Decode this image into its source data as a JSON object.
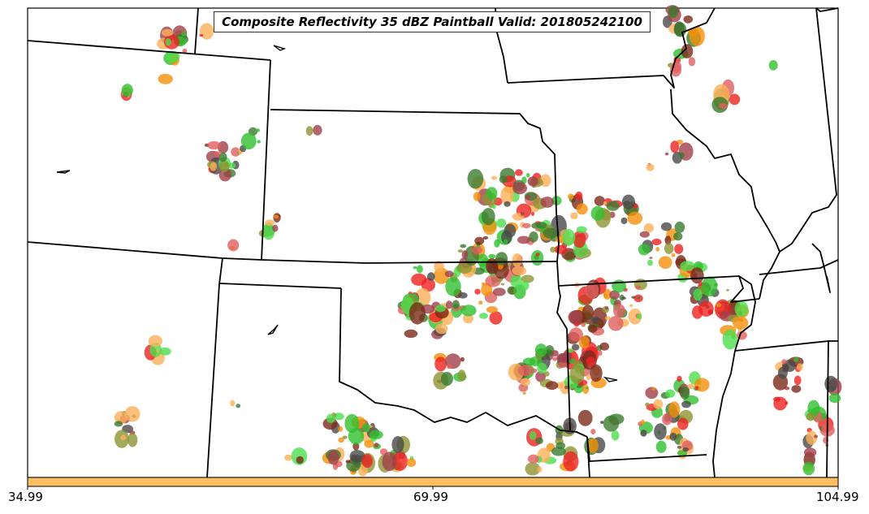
{
  "title": "Composite Reflectivity 35 dBZ Paintball Valid: 201805242100",
  "colorbar": {
    "fill_color": "#fdbf62",
    "ticks": [
      "34.99",
      "69.99",
      "104.99"
    ]
  },
  "palette": {
    "red": "#ee2222",
    "salmon": "#e06060",
    "orange": "#f5900a",
    "light_orange": "#fbb05a",
    "green": "#2fbf2f",
    "light_green": "#4ddd4d",
    "dark_green": "#3b7a2e",
    "olive": "#8f9433",
    "brown": "#7b2a1a",
    "maroon": "#a0404a",
    "dark_gray": "#4a4a4a"
  },
  "map_style": {
    "border_color": "#000000",
    "background": "#ffffff"
  }
}
